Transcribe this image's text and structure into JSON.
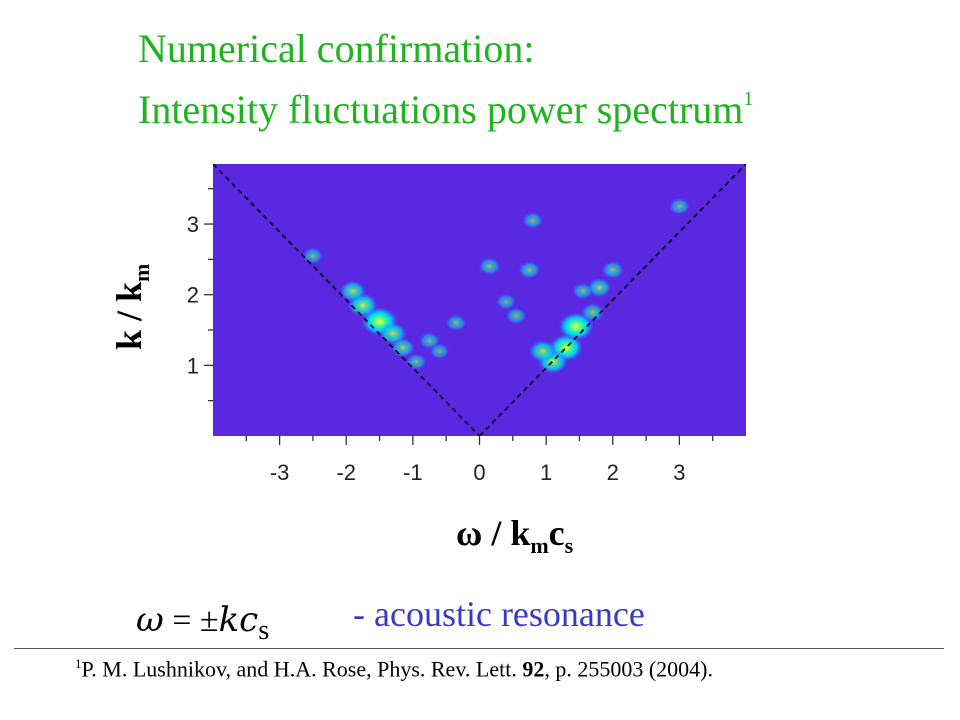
{
  "slide": {
    "title_line1": "Numerical confirmation:",
    "title_line2": "Intensity fluctuations power spectrum",
    "title_footnote_mark": "1",
    "formula_lhs": "ω",
    "formula_eq": "= ±",
    "formula_rhs_k": "kc",
    "formula_rhs_sub": "s",
    "formula_note": "- acoustic resonance",
    "ref_mark": "1",
    "ref_text_a": "P. M. Lushnikov, and H.A. Rose, Phys. Rev. Lett. ",
    "ref_volume": "92",
    "ref_text_b": ", p. 255003 (2004)."
  },
  "chart_data": {
    "type": "heatmap",
    "title": "Intensity fluctuations power spectrum",
    "xlabel_main": "ω / k",
    "xlabel_sub1": "m",
    "xlabel_mid": "c",
    "xlabel_sub2": "s",
    "ylabel_main": "k / k",
    "ylabel_sub": "m",
    "xlim": [
      -4,
      4
    ],
    "ylim": [
      0,
      3.85
    ],
    "xticks": [
      -3,
      -2,
      -1,
      0,
      1,
      2,
      3
    ],
    "yticks": [
      1,
      2,
      3
    ],
    "grid": false,
    "background_color": "#5a28e0",
    "dashed_lines": [
      {
        "x": [
          -4,
          0
        ],
        "y": [
          3.85,
          0
        ]
      },
      {
        "x": [
          0,
          4
        ],
        "y": [
          0,
          3.85
        ]
      }
    ],
    "peaks": [
      {
        "x": -1.5,
        "y": 1.62,
        "intensity": 1.0
      },
      {
        "x": -1.75,
        "y": 1.85,
        "intensity": 0.7
      },
      {
        "x": -1.9,
        "y": 2.05,
        "intensity": 0.55
      },
      {
        "x": -1.3,
        "y": 1.45,
        "intensity": 0.6
      },
      {
        "x": -1.15,
        "y": 1.25,
        "intensity": 0.45
      },
      {
        "x": -0.95,
        "y": 1.05,
        "intensity": 0.3
      },
      {
        "x": -2.5,
        "y": 2.55,
        "intensity": 0.3
      },
      {
        "x": -0.75,
        "y": 1.35,
        "intensity": 0.3
      },
      {
        "x": 1.3,
        "y": 1.25,
        "intensity": 0.9
      },
      {
        "x": 1.45,
        "y": 1.55,
        "intensity": 0.95
      },
      {
        "x": 1.1,
        "y": 1.05,
        "intensity": 0.7
      },
      {
        "x": 0.95,
        "y": 1.2,
        "intensity": 0.6
      },
      {
        "x": 1.7,
        "y": 1.75,
        "intensity": 0.4
      },
      {
        "x": 1.8,
        "y": 2.1,
        "intensity": 0.45
      },
      {
        "x": 2.0,
        "y": 2.35,
        "intensity": 0.35
      },
      {
        "x": 0.15,
        "y": 2.4,
        "intensity": 0.35
      },
      {
        "x": 0.75,
        "y": 2.35,
        "intensity": 0.35
      },
      {
        "x": 0.8,
        "y": 3.05,
        "intensity": 0.3
      },
      {
        "x": 3.0,
        "y": 3.25,
        "intensity": 0.3
      },
      {
        "x": -0.35,
        "y": 1.6,
        "intensity": 0.3
      },
      {
        "x": 0.4,
        "y": 1.9,
        "intensity": 0.25
      },
      {
        "x": 0.55,
        "y": 1.7,
        "intensity": 0.3
      },
      {
        "x": -0.6,
        "y": 1.2,
        "intensity": 0.25
      },
      {
        "x": 1.55,
        "y": 2.05,
        "intensity": 0.3
      }
    ]
  }
}
